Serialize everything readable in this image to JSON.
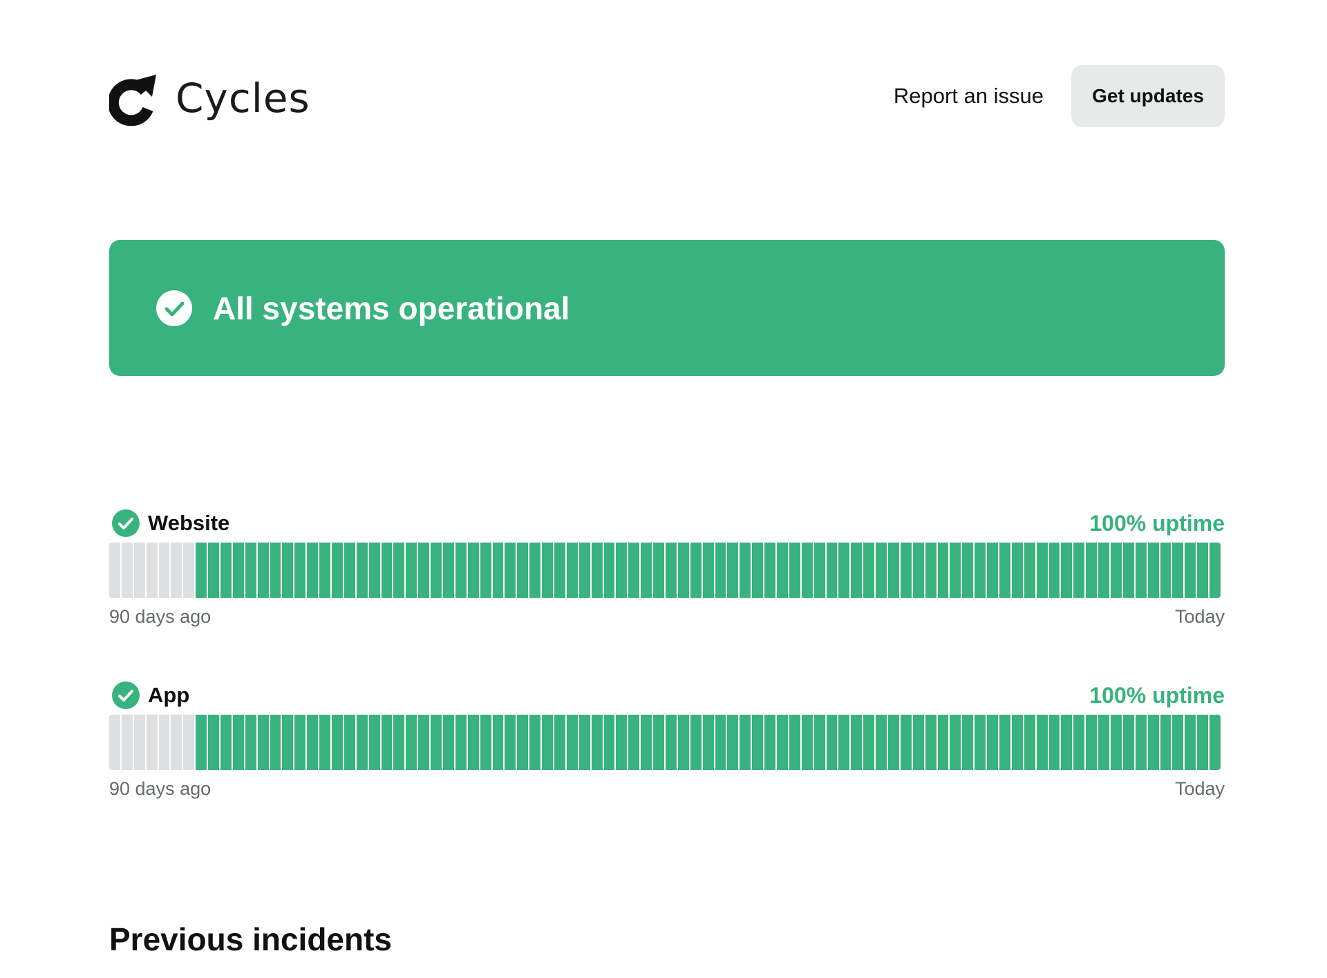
{
  "brand": {
    "name": "Cycles",
    "logo_icon": "cycles-arrow-logo-icon"
  },
  "header": {
    "report_label": "Report an issue",
    "updates_label": "Get updates"
  },
  "status": {
    "text": "All systems operational",
    "icon": "check-circle-icon",
    "color": "#38b27f"
  },
  "colors": {
    "operational": "#38b27f",
    "no_data": "#dedfe0",
    "axis_text": "#666a6d"
  },
  "components": [
    {
      "name": "Website",
      "uptime": "100% uptime",
      "icon": "check-circle-icon",
      "range_start": "90 days ago",
      "range_end": "Today",
      "days_no_data": 7,
      "days_operational": 83
    },
    {
      "name": "App",
      "uptime": "100% uptime",
      "icon": "check-circle-icon",
      "range_start": "90 days ago",
      "range_end": "Today",
      "days_no_data": 7,
      "days_operational": 83
    }
  ],
  "incidents": {
    "title": "Previous incidents"
  }
}
